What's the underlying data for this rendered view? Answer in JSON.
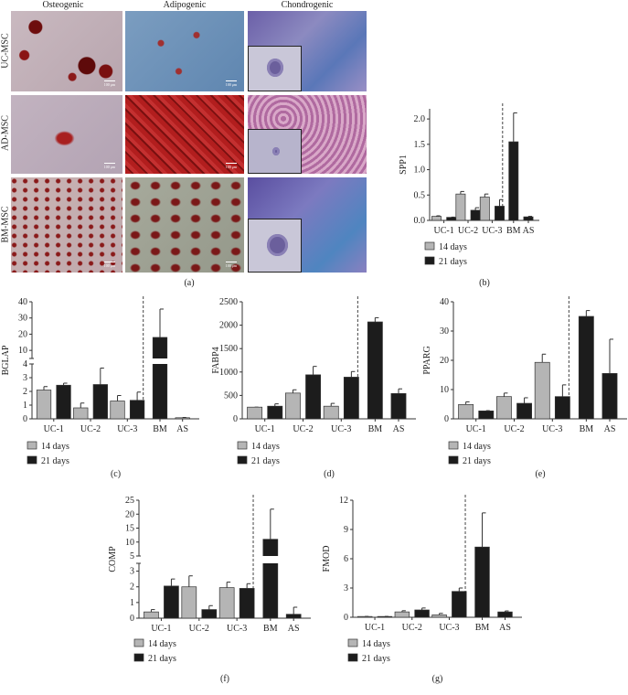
{
  "panel_a": {
    "label": "(a)",
    "columns": [
      "Osteogenic",
      "Adipogenic",
      "Chondrogenic"
    ],
    "rows": [
      "UC-MSC",
      "AD-MSC",
      "BM-MSC"
    ],
    "scale_bar": "100 μm"
  },
  "colors": {
    "day14": "#b5b5b5",
    "day21": "#1c1c1c"
  },
  "chart_data": [
    {
      "id": "b",
      "label": "(b)",
      "type": "bar",
      "ylabel": "SPP1",
      "categories": [
        "UC-1",
        "UC-2",
        "UC-3",
        "BM",
        "AS"
      ],
      "ylim": [
        0,
        2.2
      ],
      "yticks": [
        "0.0",
        "0.5",
        "1.0",
        "1.5",
        "2.0"
      ],
      "legend": [
        "14 days",
        "21 days"
      ],
      "series": [
        {
          "name": "14 days",
          "values": [
            0.08,
            0.52,
            0.46,
            null,
            null
          ],
          "errors": [
            0.01,
            0.05,
            0.06,
            null,
            null
          ]
        },
        {
          "name": "21 days",
          "values": [
            0.06,
            0.2,
            0.28,
            1.55,
            0.07
          ],
          "errors": [
            0.005,
            0.05,
            0.13,
            0.57,
            0.01
          ]
        }
      ]
    },
    {
      "id": "c",
      "label": "(c)",
      "type": "bar",
      "ylabel": "BGLAP",
      "categories": [
        "UC-1",
        "UC-2",
        "UC-3",
        "BM",
        "AS"
      ],
      "axis_break": {
        "lower": [
          0,
          4
        ],
        "upper": [
          5,
          40
        ]
      },
      "yticks": [
        "0",
        "1",
        "2",
        "3",
        "4",
        "10",
        "20",
        "30",
        "40"
      ],
      "legend": [
        "14 days",
        "21 days"
      ],
      "series": [
        {
          "name": "14 days",
          "values": [
            2.1,
            0.8,
            1.3,
            null,
            0.08
          ],
          "errors": [
            0.25,
            0.35,
            0.4,
            null,
            0.02
          ]
        },
        {
          "name": "21 days",
          "values": [
            2.45,
            2.5,
            1.35,
            18,
            null
          ],
          "errors": [
            0.15,
            1.2,
            0.6,
            17.5,
            null
          ]
        }
      ]
    },
    {
      "id": "d",
      "label": "(d)",
      "type": "bar",
      "ylabel": "FABP4",
      "categories": [
        "UC-1",
        "UC-2",
        "UC-3",
        "BM",
        "AS"
      ],
      "ylim": [
        0,
        2500
      ],
      "yticks": [
        "0",
        "500",
        "1000",
        "1500",
        "2000",
        "2500"
      ],
      "legend": [
        "14 days",
        "21 days"
      ],
      "series": [
        {
          "name": "14 days",
          "values": [
            250,
            550,
            270,
            null,
            null
          ],
          "errors": [
            0,
            70,
            60,
            null,
            null
          ]
        },
        {
          "name": "21 days",
          "values": [
            270,
            940,
            890,
            2070,
            540
          ],
          "errors": [
            50,
            180,
            120,
            90,
            100
          ]
        }
      ]
    },
    {
      "id": "e",
      "label": "(e)",
      "type": "bar",
      "ylabel": "PPARG",
      "categories": [
        "UC-1",
        "UC-2",
        "UC-3",
        "BM",
        "AS"
      ],
      "ylim": [
        0,
        40
      ],
      "yticks": [
        "0",
        "10",
        "20",
        "30",
        "40"
      ],
      "legend": [
        "14 days",
        "21 days"
      ],
      "series": [
        {
          "name": "14 days",
          "values": [
            4.9,
            7.6,
            19.3,
            null,
            null
          ],
          "errors": [
            0.9,
            1.2,
            2.8,
            null,
            null
          ]
        },
        {
          "name": "21 days",
          "values": [
            2.7,
            5.3,
            7.6,
            35,
            15.5
          ],
          "errors": [
            0.1,
            1.9,
            4,
            2,
            11.7
          ]
        }
      ]
    },
    {
      "id": "f",
      "label": "(f)",
      "type": "bar",
      "ylabel": "COMP",
      "categories": [
        "UC-1",
        "UC-2",
        "UC-3",
        "BM",
        "AS"
      ],
      "axis_break": {
        "lower": [
          0,
          3.5
        ],
        "upper": [
          5,
          25
        ]
      },
      "yticks": [
        "0",
        "1",
        "2",
        "3",
        "5",
        "10",
        "15",
        "20",
        "25"
      ],
      "legend": [
        "14 days",
        "21 days"
      ],
      "series": [
        {
          "name": "14 days",
          "values": [
            0.4,
            2.0,
            1.95,
            null,
            null
          ],
          "errors": [
            0.15,
            0.7,
            0.35,
            null,
            null
          ]
        },
        {
          "name": "21 days",
          "values": [
            2.05,
            0.55,
            1.9,
            11,
            0.25
          ],
          "errors": [
            0.45,
            0.25,
            0.3,
            10.8,
            0.45
          ]
        }
      ]
    },
    {
      "id": "g",
      "label": "(g)",
      "type": "bar",
      "ylabel": "FMOD",
      "categories": [
        "UC-1",
        "UC-2",
        "UC-3",
        "BM",
        "AS"
      ],
      "ylim": [
        0,
        12
      ],
      "yticks": [
        "0",
        "3",
        "6",
        "9",
        "12"
      ],
      "legend": [
        "14 days",
        "21 days"
      ],
      "series": [
        {
          "name": "14 days",
          "values": [
            0.08,
            0.55,
            0.25,
            null,
            null
          ],
          "errors": [
            0.01,
            0.12,
            0.15,
            null,
            null
          ]
        },
        {
          "name": "21 days",
          "values": [
            0.08,
            0.75,
            2.65,
            7.2,
            0.55
          ],
          "errors": [
            0.01,
            0.2,
            0.35,
            3.5,
            0.1
          ]
        }
      ]
    }
  ]
}
